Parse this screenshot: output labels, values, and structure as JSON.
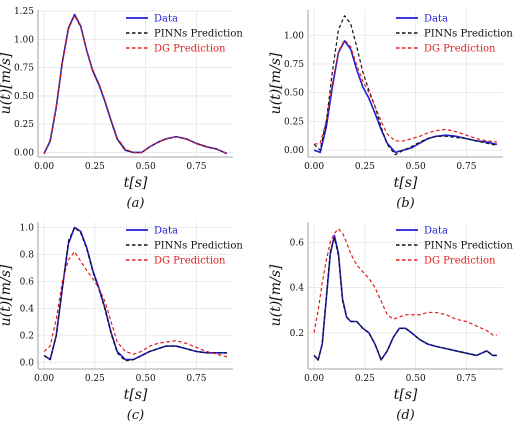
{
  "chart_data": [
    {
      "type": "line",
      "panel_label": "(a)",
      "xlabel": "t[s]",
      "ylabel": "u(t)[m/s]",
      "xlim": [
        -0.03,
        0.93
      ],
      "ylim": [
        -0.04,
        1.26
      ],
      "xticks": [
        "0.00",
        "0.25",
        "0.50",
        "0.75"
      ],
      "xtick_values": [
        0,
        0.25,
        0.5,
        0.75
      ],
      "yticks": [
        "0.00",
        "0.25",
        "0.50",
        "0.75",
        "1.00",
        "1.25"
      ],
      "ytick_values": [
        0,
        0.25,
        0.5,
        0.75,
        1.0,
        1.25
      ],
      "legend": "top-right",
      "series": [
        {
          "name": "Data",
          "color": "#1f1fd6",
          "style": "solid",
          "x": [
            0,
            0.03,
            0.06,
            0.09,
            0.12,
            0.15,
            0.18,
            0.21,
            0.24,
            0.27,
            0.3,
            0.33,
            0.36,
            0.4,
            0.44,
            0.48,
            0.52,
            0.56,
            0.6,
            0.65,
            0.7,
            0.75,
            0.8,
            0.85,
            0.9
          ],
          "y": [
            -0.01,
            0.1,
            0.4,
            0.8,
            1.1,
            1.22,
            1.12,
            0.9,
            0.72,
            0.6,
            0.45,
            0.28,
            0.12,
            0.02,
            0.0,
            0.0,
            0.05,
            0.09,
            0.12,
            0.14,
            0.12,
            0.08,
            0.05,
            0.03,
            -0.01
          ]
        },
        {
          "name": "PINNs Prediction",
          "color": "#111111",
          "style": "dashed",
          "x": [
            0,
            0.03,
            0.06,
            0.09,
            0.12,
            0.15,
            0.18,
            0.21,
            0.24,
            0.27,
            0.3,
            0.33,
            0.36,
            0.4,
            0.44,
            0.48,
            0.52,
            0.56,
            0.6,
            0.65,
            0.7,
            0.75,
            0.8,
            0.85,
            0.9
          ],
          "y": [
            -0.01,
            0.11,
            0.41,
            0.81,
            1.1,
            1.21,
            1.11,
            0.9,
            0.72,
            0.6,
            0.45,
            0.28,
            0.12,
            0.02,
            0.0,
            0.0,
            0.05,
            0.09,
            0.12,
            0.14,
            0.12,
            0.08,
            0.05,
            0.03,
            -0.01
          ]
        },
        {
          "name": "DG Prediction",
          "color": "#e02020",
          "style": "dashed",
          "x": [
            0,
            0.03,
            0.06,
            0.09,
            0.12,
            0.15,
            0.18,
            0.21,
            0.24,
            0.27,
            0.3,
            0.33,
            0.36,
            0.4,
            0.44,
            0.48,
            0.52,
            0.56,
            0.6,
            0.65,
            0.7,
            0.75,
            0.8,
            0.85,
            0.9
          ],
          "y": [
            -0.01,
            0.1,
            0.4,
            0.79,
            1.09,
            1.21,
            1.12,
            0.9,
            0.73,
            0.61,
            0.46,
            0.29,
            0.13,
            0.03,
            0.0,
            0.0,
            0.05,
            0.09,
            0.12,
            0.14,
            0.12,
            0.08,
            0.05,
            0.03,
            -0.01
          ]
        }
      ]
    },
    {
      "type": "line",
      "panel_label": "(b)",
      "xlabel": "t[s]",
      "ylabel": "u(t)[m/s]",
      "xlim": [
        -0.03,
        0.93
      ],
      "ylim": [
        -0.06,
        1.22
      ],
      "xticks": [
        "0.00",
        "0.25",
        "0.50",
        "0.75"
      ],
      "xtick_values": [
        0,
        0.25,
        0.5,
        0.75
      ],
      "yticks": [
        "0.00",
        "0.25",
        "0.50",
        "0.75",
        "1.00"
      ],
      "ytick_values": [
        0,
        0.25,
        0.5,
        0.75,
        1.0
      ],
      "legend": "top-right",
      "series": [
        {
          "name": "Data",
          "color": "#1f1fd6",
          "style": "solid",
          "x": [
            0,
            0.03,
            0.06,
            0.09,
            0.12,
            0.15,
            0.18,
            0.21,
            0.24,
            0.27,
            0.3,
            0.33,
            0.36,
            0.4,
            0.44,
            0.48,
            0.52,
            0.56,
            0.6,
            0.65,
            0.7,
            0.75,
            0.8,
            0.85,
            0.9
          ],
          "y": [
            0.0,
            -0.02,
            0.2,
            0.55,
            0.85,
            0.95,
            0.88,
            0.7,
            0.55,
            0.45,
            0.32,
            0.18,
            0.06,
            -0.02,
            0.0,
            0.02,
            0.06,
            0.1,
            0.12,
            0.13,
            0.12,
            0.1,
            0.08,
            0.07,
            0.05
          ]
        },
        {
          "name": "PINNs Prediction",
          "color": "#111111",
          "style": "dashed",
          "x": [
            0,
            0.03,
            0.06,
            0.09,
            0.12,
            0.15,
            0.18,
            0.21,
            0.24,
            0.27,
            0.3,
            0.33,
            0.36,
            0.4,
            0.44,
            0.48,
            0.52,
            0.56,
            0.6,
            0.65,
            0.7,
            0.75,
            0.8,
            0.85,
            0.9
          ],
          "y": [
            0.05,
            0.0,
            0.25,
            0.68,
            1.05,
            1.17,
            1.1,
            0.9,
            0.68,
            0.52,
            0.38,
            0.2,
            0.05,
            -0.04,
            0.0,
            0.03,
            0.07,
            0.1,
            0.12,
            0.12,
            0.11,
            0.1,
            0.08,
            0.06,
            0.04
          ]
        },
        {
          "name": "DG Prediction",
          "color": "#e02020",
          "style": "dashed",
          "x": [
            0,
            0.03,
            0.06,
            0.09,
            0.12,
            0.15,
            0.18,
            0.21,
            0.24,
            0.27,
            0.3,
            0.33,
            0.36,
            0.4,
            0.44,
            0.48,
            0.52,
            0.56,
            0.6,
            0.65,
            0.7,
            0.75,
            0.8,
            0.85,
            0.9
          ],
          "y": [
            0.05,
            0.06,
            0.25,
            0.58,
            0.86,
            0.96,
            0.9,
            0.74,
            0.6,
            0.5,
            0.38,
            0.25,
            0.14,
            0.08,
            0.08,
            0.1,
            0.12,
            0.15,
            0.17,
            0.18,
            0.16,
            0.13,
            0.1,
            0.08,
            0.07
          ]
        }
      ]
    },
    {
      "type": "line",
      "panel_label": "(c)",
      "xlabel": "t[s]",
      "ylabel": "u(t)[m/s]",
      "xlim": [
        -0.03,
        0.93
      ],
      "ylim": [
        -0.05,
        1.04
      ],
      "xticks": [
        "0.00",
        "0.25",
        "0.50",
        "0.75"
      ],
      "xtick_values": [
        0,
        0.25,
        0.5,
        0.75
      ],
      "yticks": [
        "0.0",
        "0.2",
        "0.4",
        "0.6",
        "0.8",
        "1.0"
      ],
      "ytick_values": [
        0,
        0.2,
        0.4,
        0.6,
        0.8,
        1.0
      ],
      "legend": "top-right",
      "series": [
        {
          "name": "Data",
          "color": "#1f1fd6",
          "style": "solid",
          "x": [
            0,
            0.03,
            0.06,
            0.09,
            0.12,
            0.15,
            0.18,
            0.21,
            0.24,
            0.27,
            0.3,
            0.33,
            0.36,
            0.4,
            0.44,
            0.48,
            0.52,
            0.56,
            0.6,
            0.65,
            0.7,
            0.75,
            0.8,
            0.85,
            0.9
          ],
          "y": [
            0.05,
            0.02,
            0.2,
            0.55,
            0.88,
            1.0,
            0.97,
            0.85,
            0.68,
            0.55,
            0.4,
            0.22,
            0.08,
            0.02,
            0.02,
            0.05,
            0.08,
            0.1,
            0.12,
            0.12,
            0.1,
            0.08,
            0.07,
            0.07,
            0.07
          ]
        },
        {
          "name": "PINNs Prediction",
          "color": "#111111",
          "style": "dashed",
          "x": [
            0,
            0.03,
            0.06,
            0.09,
            0.12,
            0.15,
            0.18,
            0.21,
            0.24,
            0.27,
            0.3,
            0.33,
            0.36,
            0.4,
            0.44,
            0.48,
            0.52,
            0.56,
            0.6,
            0.65,
            0.7,
            0.75,
            0.8,
            0.85,
            0.9
          ],
          "y": [
            0.05,
            0.02,
            0.2,
            0.56,
            0.9,
            1.0,
            0.96,
            0.84,
            0.67,
            0.54,
            0.39,
            0.21,
            0.07,
            0.01,
            0.02,
            0.05,
            0.08,
            0.1,
            0.12,
            0.12,
            0.1,
            0.08,
            0.07,
            0.07,
            0.07
          ]
        },
        {
          "name": "DG Prediction",
          "color": "#e02020",
          "style": "dashed",
          "x": [
            0,
            0.03,
            0.06,
            0.09,
            0.12,
            0.15,
            0.18,
            0.21,
            0.24,
            0.27,
            0.3,
            0.33,
            0.36,
            0.4,
            0.44,
            0.48,
            0.52,
            0.56,
            0.6,
            0.65,
            0.7,
            0.75,
            0.8,
            0.85,
            0.9
          ],
          "y": [
            0.08,
            0.12,
            0.32,
            0.6,
            0.76,
            0.82,
            0.75,
            0.68,
            0.62,
            0.55,
            0.45,
            0.3,
            0.15,
            0.08,
            0.06,
            0.08,
            0.12,
            0.14,
            0.15,
            0.16,
            0.14,
            0.11,
            0.08,
            0.06,
            0.04
          ]
        }
      ]
    },
    {
      "type": "line",
      "panel_label": "(d)",
      "xlabel": "t[s]",
      "ylabel": "u(t)[m/s]",
      "xlim": [
        -0.03,
        0.93
      ],
      "ylim": [
        0.04,
        0.69
      ],
      "xticks": [
        "0.00",
        "0.25",
        "0.50",
        "0.75"
      ],
      "xtick_values": [
        0,
        0.25,
        0.5,
        0.75
      ],
      "yticks": [
        "0.2",
        "0.4",
        "0.6"
      ],
      "ytick_values": [
        0.2,
        0.4,
        0.6
      ],
      "legend": "top-right",
      "series": [
        {
          "name": "Data",
          "color": "#1f1fd6",
          "style": "solid",
          "x": [
            0,
            0.02,
            0.04,
            0.06,
            0.08,
            0.1,
            0.12,
            0.14,
            0.16,
            0.18,
            0.21,
            0.24,
            0.27,
            0.3,
            0.33,
            0.36,
            0.39,
            0.42,
            0.45,
            0.48,
            0.52,
            0.56,
            0.6,
            0.65,
            0.7,
            0.75,
            0.8,
            0.85,
            0.88,
            0.9
          ],
          "y": [
            0.1,
            0.08,
            0.15,
            0.35,
            0.55,
            0.63,
            0.55,
            0.35,
            0.27,
            0.25,
            0.25,
            0.22,
            0.2,
            0.15,
            0.08,
            0.12,
            0.18,
            0.22,
            0.22,
            0.2,
            0.17,
            0.15,
            0.14,
            0.13,
            0.12,
            0.11,
            0.1,
            0.12,
            0.1,
            0.1
          ]
        },
        {
          "name": "PINNs Prediction",
          "color": "#111111",
          "style": "dashed",
          "x": [
            0,
            0.02,
            0.04,
            0.06,
            0.08,
            0.1,
            0.12,
            0.14,
            0.16,
            0.18,
            0.21,
            0.24,
            0.27,
            0.3,
            0.33,
            0.36,
            0.39,
            0.42,
            0.45,
            0.48,
            0.52,
            0.56,
            0.6,
            0.65,
            0.7,
            0.75,
            0.8,
            0.85,
            0.88,
            0.9
          ],
          "y": [
            0.1,
            0.08,
            0.15,
            0.36,
            0.56,
            0.62,
            0.54,
            0.34,
            0.27,
            0.25,
            0.25,
            0.22,
            0.2,
            0.15,
            0.08,
            0.12,
            0.18,
            0.22,
            0.22,
            0.2,
            0.17,
            0.15,
            0.14,
            0.13,
            0.12,
            0.11,
            0.1,
            0.12,
            0.1,
            0.1
          ]
        },
        {
          "name": "DG Prediction",
          "color": "#e02020",
          "style": "dashed",
          "x": [
            0,
            0.02,
            0.04,
            0.06,
            0.08,
            0.1,
            0.12,
            0.14,
            0.16,
            0.18,
            0.21,
            0.24,
            0.27,
            0.3,
            0.33,
            0.36,
            0.39,
            0.42,
            0.45,
            0.48,
            0.52,
            0.56,
            0.6,
            0.65,
            0.7,
            0.75,
            0.8,
            0.85,
            0.88,
            0.9
          ],
          "y": [
            0.2,
            0.3,
            0.42,
            0.52,
            0.6,
            0.64,
            0.66,
            0.64,
            0.6,
            0.55,
            0.5,
            0.47,
            0.44,
            0.4,
            0.34,
            0.28,
            0.26,
            0.27,
            0.28,
            0.28,
            0.28,
            0.29,
            0.29,
            0.28,
            0.26,
            0.25,
            0.23,
            0.21,
            0.19,
            0.19
          ]
        }
      ]
    }
  ]
}
